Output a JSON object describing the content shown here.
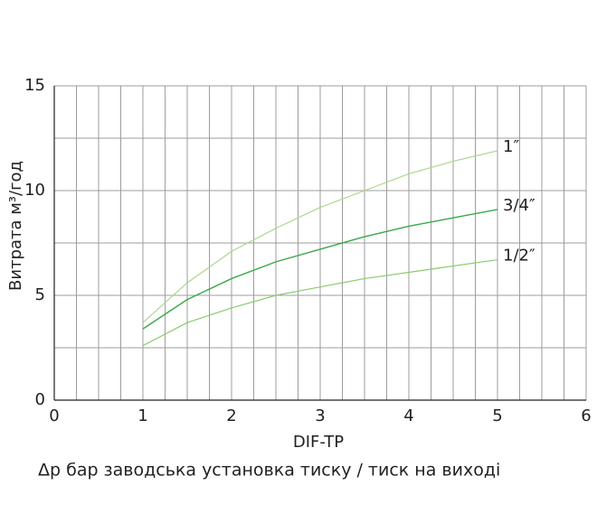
{
  "chart_data": {
    "type": "line",
    "x_label": "DIF-TP",
    "y_label": "Витрата м³/год",
    "subtitle": "Δр бар заводська установка тиску / тиск на виході",
    "x": [
      1,
      1.5,
      2,
      2.5,
      3,
      3.5,
      4,
      4.5,
      5
    ],
    "series": [
      {
        "name": "1″",
        "color": "#a9d88e",
        "values": [
          3.7,
          5.6,
          7.1,
          8.2,
          9.2,
          10.0,
          10.8,
          11.4,
          11.9
        ]
      },
      {
        "name": "3/4″",
        "color": "#3aa849",
        "values": [
          3.4,
          4.8,
          5.8,
          6.6,
          7.2,
          7.8,
          8.3,
          8.7,
          9.1
        ]
      },
      {
        "name": "1/2″",
        "color": "#8ccb6e",
        "values": [
          2.6,
          3.7,
          4.4,
          5.0,
          5.4,
          5.8,
          6.1,
          6.4,
          6.7
        ]
      }
    ],
    "xlim": [
      0,
      6
    ],
    "xticks": [
      0,
      1,
      2,
      3,
      4,
      5,
      6
    ],
    "ylim": [
      0,
      15
    ],
    "yticks": [
      0,
      5,
      10,
      15
    ],
    "grid": true
  }
}
